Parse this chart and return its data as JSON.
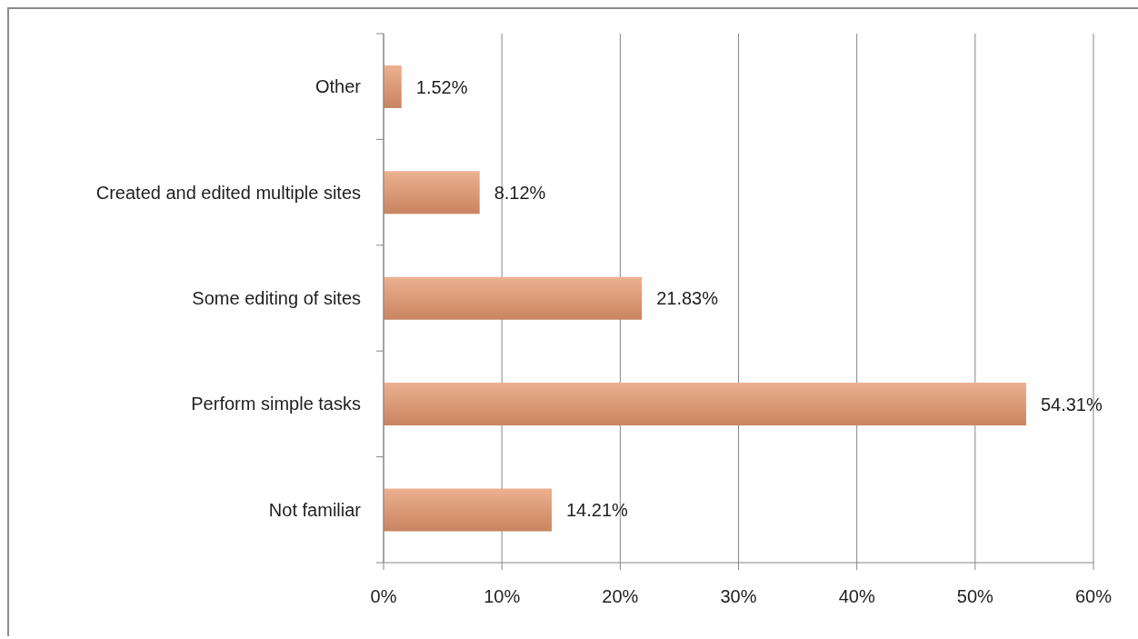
{
  "chart_data": {
    "type": "bar",
    "orientation": "horizontal",
    "categories": [
      "Other",
      "Created and edited multiple sites",
      "Some editing of sites",
      "Perform simple tasks",
      "Not familiar"
    ],
    "values": [
      1.52,
      8.12,
      21.83,
      54.31,
      14.21
    ],
    "value_labels": [
      "1.52%",
      "8.12%",
      "21.83%",
      "54.31%",
      "14.21%"
    ],
    "color": "#e89a70",
    "xlim": [
      0,
      60
    ],
    "xticks": [
      {
        "value": 0,
        "label": "0%"
      },
      {
        "value": 10,
        "label": "10%"
      },
      {
        "value": 20,
        "label": "20%"
      },
      {
        "value": 30,
        "label": "30%"
      },
      {
        "value": 40,
        "label": "40%"
      },
      {
        "value": 50,
        "label": "50%"
      },
      {
        "value": 60,
        "label": "60%"
      }
    ],
    "grid": "x"
  }
}
